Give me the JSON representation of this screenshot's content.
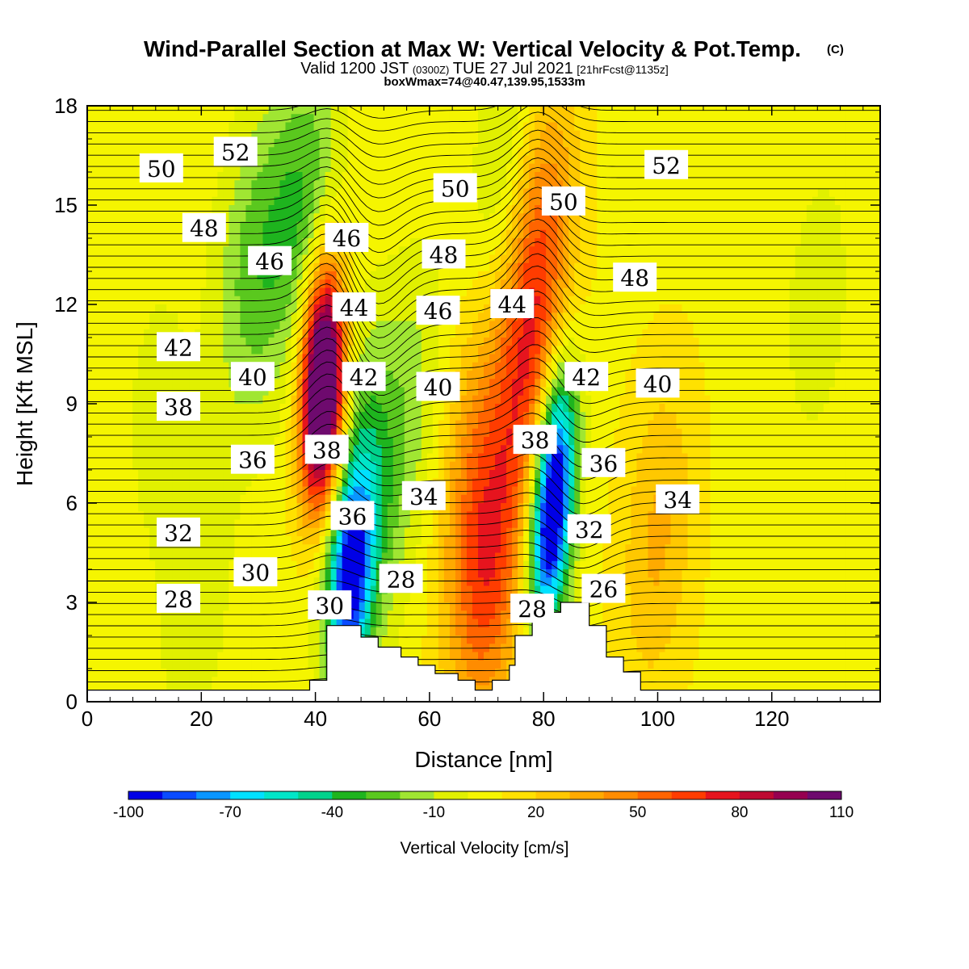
{
  "chart_data": {
    "type": "heatmap",
    "title": "Wind-Parallel Section at Max W: Vertical Velocity & Pot.Temp.",
    "title_mark": "(C)",
    "subtitle": {
      "valid": "Valid 1200 JST",
      "utc": "(0300Z)",
      "date": "TUE 27 Jul 2021",
      "forecast": "[21hrFcst@1135z]"
    },
    "box_info": "boxWmax=74@40.47,139.95,1533m",
    "xlabel": "Distance [nm]",
    "ylabel": "Height [Kft MSL]",
    "xlim": [
      0,
      139
    ],
    "ylim": [
      0,
      18
    ],
    "xticks": [
      0,
      20,
      40,
      60,
      80,
      100,
      120
    ],
    "yticks": [
      0,
      3,
      6,
      9,
      12,
      15,
      18
    ],
    "colorbar": {
      "label": "Vertical Velocity [cm/s]",
      "levels": [
        -100,
        -90,
        -80,
        -70,
        -60,
        -50,
        -40,
        -30,
        -20,
        -10,
        0,
        10,
        20,
        30,
        40,
        50,
        60,
        70,
        80,
        90,
        100,
        110
      ],
      "tick_labels": [
        "-100",
        "-70",
        "-40",
        "-10",
        "20",
        "50",
        "80",
        "110"
      ],
      "colors": [
        "#0000e6",
        "#0a4bff",
        "#0a96ff",
        "#00e1ff",
        "#00e6c8",
        "#00d28c",
        "#1eb41e",
        "#5ac81e",
        "#a0e632",
        "#e1f000",
        "#f5f500",
        "#ffe100",
        "#ffc800",
        "#ffaa00",
        "#ff8c00",
        "#ff6400",
        "#ff3c00",
        "#e6141e",
        "#be0a32",
        "#960050",
        "#6e0a6e"
      ]
    },
    "terrain_kft": [
      [
        0,
        0.35
      ],
      [
        39,
        0.35
      ],
      [
        39,
        0.65
      ],
      [
        42,
        0.65
      ],
      [
        42,
        2.3
      ],
      [
        48,
        2.3
      ],
      [
        48,
        1.95
      ],
      [
        51,
        1.95
      ],
      [
        51,
        1.65
      ],
      [
        55,
        1.65
      ],
      [
        55,
        1.35
      ],
      [
        58,
        1.35
      ],
      [
        58,
        1.1
      ],
      [
        61,
        1.1
      ],
      [
        61,
        0.85
      ],
      [
        65,
        0.85
      ],
      [
        65,
        0.65
      ],
      [
        68,
        0.65
      ],
      [
        68,
        0.35
      ],
      [
        71,
        0.35
      ],
      [
        71,
        0.65
      ],
      [
        74,
        0.65
      ],
      [
        74,
        1.1
      ],
      [
        75,
        1.1
      ],
      [
        75,
        2.0
      ],
      [
        78,
        2.0
      ],
      [
        78,
        2.7
      ],
      [
        83,
        2.7
      ],
      [
        83,
        3.0
      ],
      [
        88,
        3.0
      ],
      [
        88,
        2.3
      ],
      [
        91,
        2.3
      ],
      [
        91,
        1.35
      ],
      [
        94,
        1.35
      ],
      [
        94,
        0.9
      ],
      [
        97,
        0.9
      ],
      [
        97,
        0.35
      ],
      [
        139,
        0.35
      ]
    ],
    "w_features_cm_s": [
      {
        "x": 41.5,
        "z": 8.5,
        "value": 110
      },
      {
        "x": 41.0,
        "z": 11.0,
        "value": 75
      },
      {
        "x": 70.0,
        "z": 4.0,
        "value": 55
      },
      {
        "x": 78.5,
        "z": 14.5,
        "value": 55
      },
      {
        "x": 77.0,
        "z": 10.0,
        "value": 45
      },
      {
        "x": 66.0,
        "z": 8.0,
        "value": 20
      },
      {
        "x": 100.0,
        "z": 5.0,
        "value": 25
      },
      {
        "x": 46.0,
        "z": 3.5,
        "value": -80
      },
      {
        "x": 48.0,
        "z": 6.0,
        "value": -50
      },
      {
        "x": 81.0,
        "z": 5.0,
        "value": -100
      },
      {
        "x": 82.5,
        "z": 8.0,
        "value": -65
      },
      {
        "x": 75.0,
        "z": 15.5,
        "value": -40
      },
      {
        "x": 38.0,
        "z": 15.0,
        "value": -35
      },
      {
        "x": 29.0,
        "z": 13.0,
        "value": -30
      },
      {
        "x": 58.0,
        "z": 9.0,
        "value": -20
      },
      {
        "x": 19.0,
        "z": 3.5,
        "value": -15
      },
      {
        "x": 128.0,
        "z": 12.0,
        "value": -12
      },
      {
        "x": 12.0,
        "z": 9.0,
        "value": -10
      }
    ],
    "theta_contour_labels": [
      {
        "value": "52",
        "x": 26,
        "z": 16.6
      },
      {
        "value": "50",
        "x": 13,
        "z": 16.1
      },
      {
        "value": "48",
        "x": 20.5,
        "z": 14.3
      },
      {
        "value": "46",
        "x": 32,
        "z": 13.3
      },
      {
        "value": "46",
        "x": 45.5,
        "z": 14.0
      },
      {
        "value": "44",
        "x": 46.8,
        "z": 11.9
      },
      {
        "value": "42",
        "x": 16,
        "z": 10.7
      },
      {
        "value": "40",
        "x": 29,
        "z": 9.8
      },
      {
        "value": "42",
        "x": 48.5,
        "z": 9.8
      },
      {
        "value": "38",
        "x": 16,
        "z": 8.9
      },
      {
        "value": "38",
        "x": 42,
        "z": 7.6
      },
      {
        "value": "36",
        "x": 29,
        "z": 7.3
      },
      {
        "value": "36",
        "x": 46.5,
        "z": 5.6
      },
      {
        "value": "34",
        "x": 59,
        "z": 6.2
      },
      {
        "value": "32",
        "x": 16,
        "z": 5.1
      },
      {
        "value": "30",
        "x": 29.5,
        "z": 3.9
      },
      {
        "value": "28",
        "x": 16,
        "z": 3.1
      },
      {
        "value": "30",
        "x": 42.5,
        "z": 2.9
      },
      {
        "value": "28",
        "x": 55,
        "z": 3.7
      },
      {
        "value": "50",
        "x": 64.5,
        "z": 15.5
      },
      {
        "value": "48",
        "x": 62.5,
        "z": 13.5
      },
      {
        "value": "46",
        "x": 61.5,
        "z": 11.8
      },
      {
        "value": "40",
        "x": 61.5,
        "z": 9.5
      },
      {
        "value": "44",
        "x": 74.5,
        "z": 12.0
      },
      {
        "value": "38",
        "x": 78.5,
        "z": 7.9
      },
      {
        "value": "50",
        "x": 83.5,
        "z": 15.1
      },
      {
        "value": "52",
        "x": 101.5,
        "z": 16.2
      },
      {
        "value": "48",
        "x": 96,
        "z": 12.8
      },
      {
        "value": "42",
        "x": 87.5,
        "z": 9.8
      },
      {
        "value": "40",
        "x": 100,
        "z": 9.6
      },
      {
        "value": "36",
        "x": 90.5,
        "z": 7.2
      },
      {
        "value": "34",
        "x": 103.5,
        "z": 6.1
      },
      {
        "value": "32",
        "x": 88,
        "z": 5.2
      },
      {
        "value": "26",
        "x": 90.5,
        "z": 3.4
      },
      {
        "value": "28",
        "x": 78,
        "z": 2.8
      }
    ]
  }
}
